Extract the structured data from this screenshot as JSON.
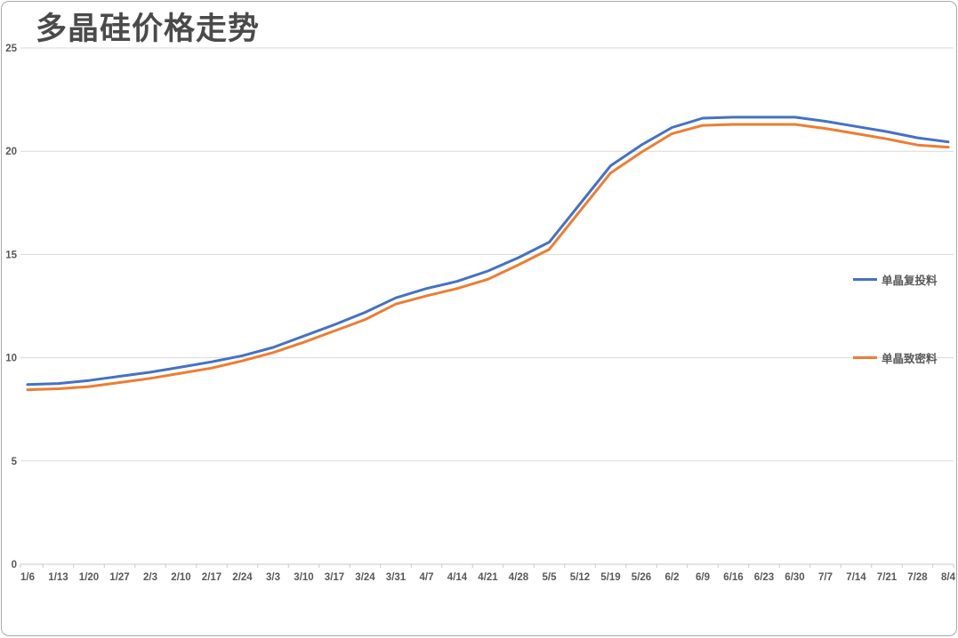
{
  "header": {
    "title": "多晶硅价格走势"
  },
  "chart_data": {
    "type": "line",
    "title": "多晶硅价格走势",
    "xlabel": "",
    "ylabel": "",
    "ylim": [
      0,
      25
    ],
    "yticks": [
      0,
      5,
      10,
      15,
      20,
      25
    ],
    "grid": "horizontal",
    "legend_position": "right",
    "categories": [
      "1/6",
      "1/13",
      "1/20",
      "1/27",
      "2/3",
      "2/10",
      "2/17",
      "2/24",
      "3/3",
      "3/10",
      "3/17",
      "3/24",
      "3/31",
      "4/7",
      "4/14",
      "4/21",
      "4/28",
      "5/5",
      "5/12",
      "5/19",
      "5/26",
      "6/2",
      "6/9",
      "6/16",
      "6/23",
      "6/30",
      "7/7",
      "7/14",
      "7/21",
      "7/28",
      "8/4"
    ],
    "series": [
      {
        "name": "单晶复投料",
        "color": "#4472c4",
        "values": [
          8.7,
          8.75,
          8.9,
          9.1,
          9.3,
          9.55,
          9.8,
          10.1,
          10.5,
          11.05,
          11.6,
          12.2,
          12.9,
          13.35,
          13.7,
          14.2,
          14.85,
          15.6,
          17.45,
          19.3,
          20.3,
          21.15,
          21.6,
          21.65,
          21.65,
          21.65,
          21.45,
          21.2,
          20.95,
          20.65,
          20.45
        ]
      },
      {
        "name": "单晶致密料",
        "color": "#ed7d31",
        "values": [
          8.45,
          8.5,
          8.6,
          8.8,
          9.0,
          9.25,
          9.5,
          9.85,
          10.25,
          10.75,
          11.3,
          11.85,
          12.6,
          13.0,
          13.35,
          13.8,
          14.5,
          15.25,
          17.1,
          18.95,
          19.95,
          20.85,
          21.25,
          21.3,
          21.3,
          21.3,
          21.1,
          20.85,
          20.6,
          20.3,
          20.2
        ]
      }
    ],
    "colors": {
      "gridline": "#d9d9d9",
      "axis_line": "#c9c9c9",
      "tick_text": "#595959",
      "title_text": "#4a4a4a"
    }
  }
}
